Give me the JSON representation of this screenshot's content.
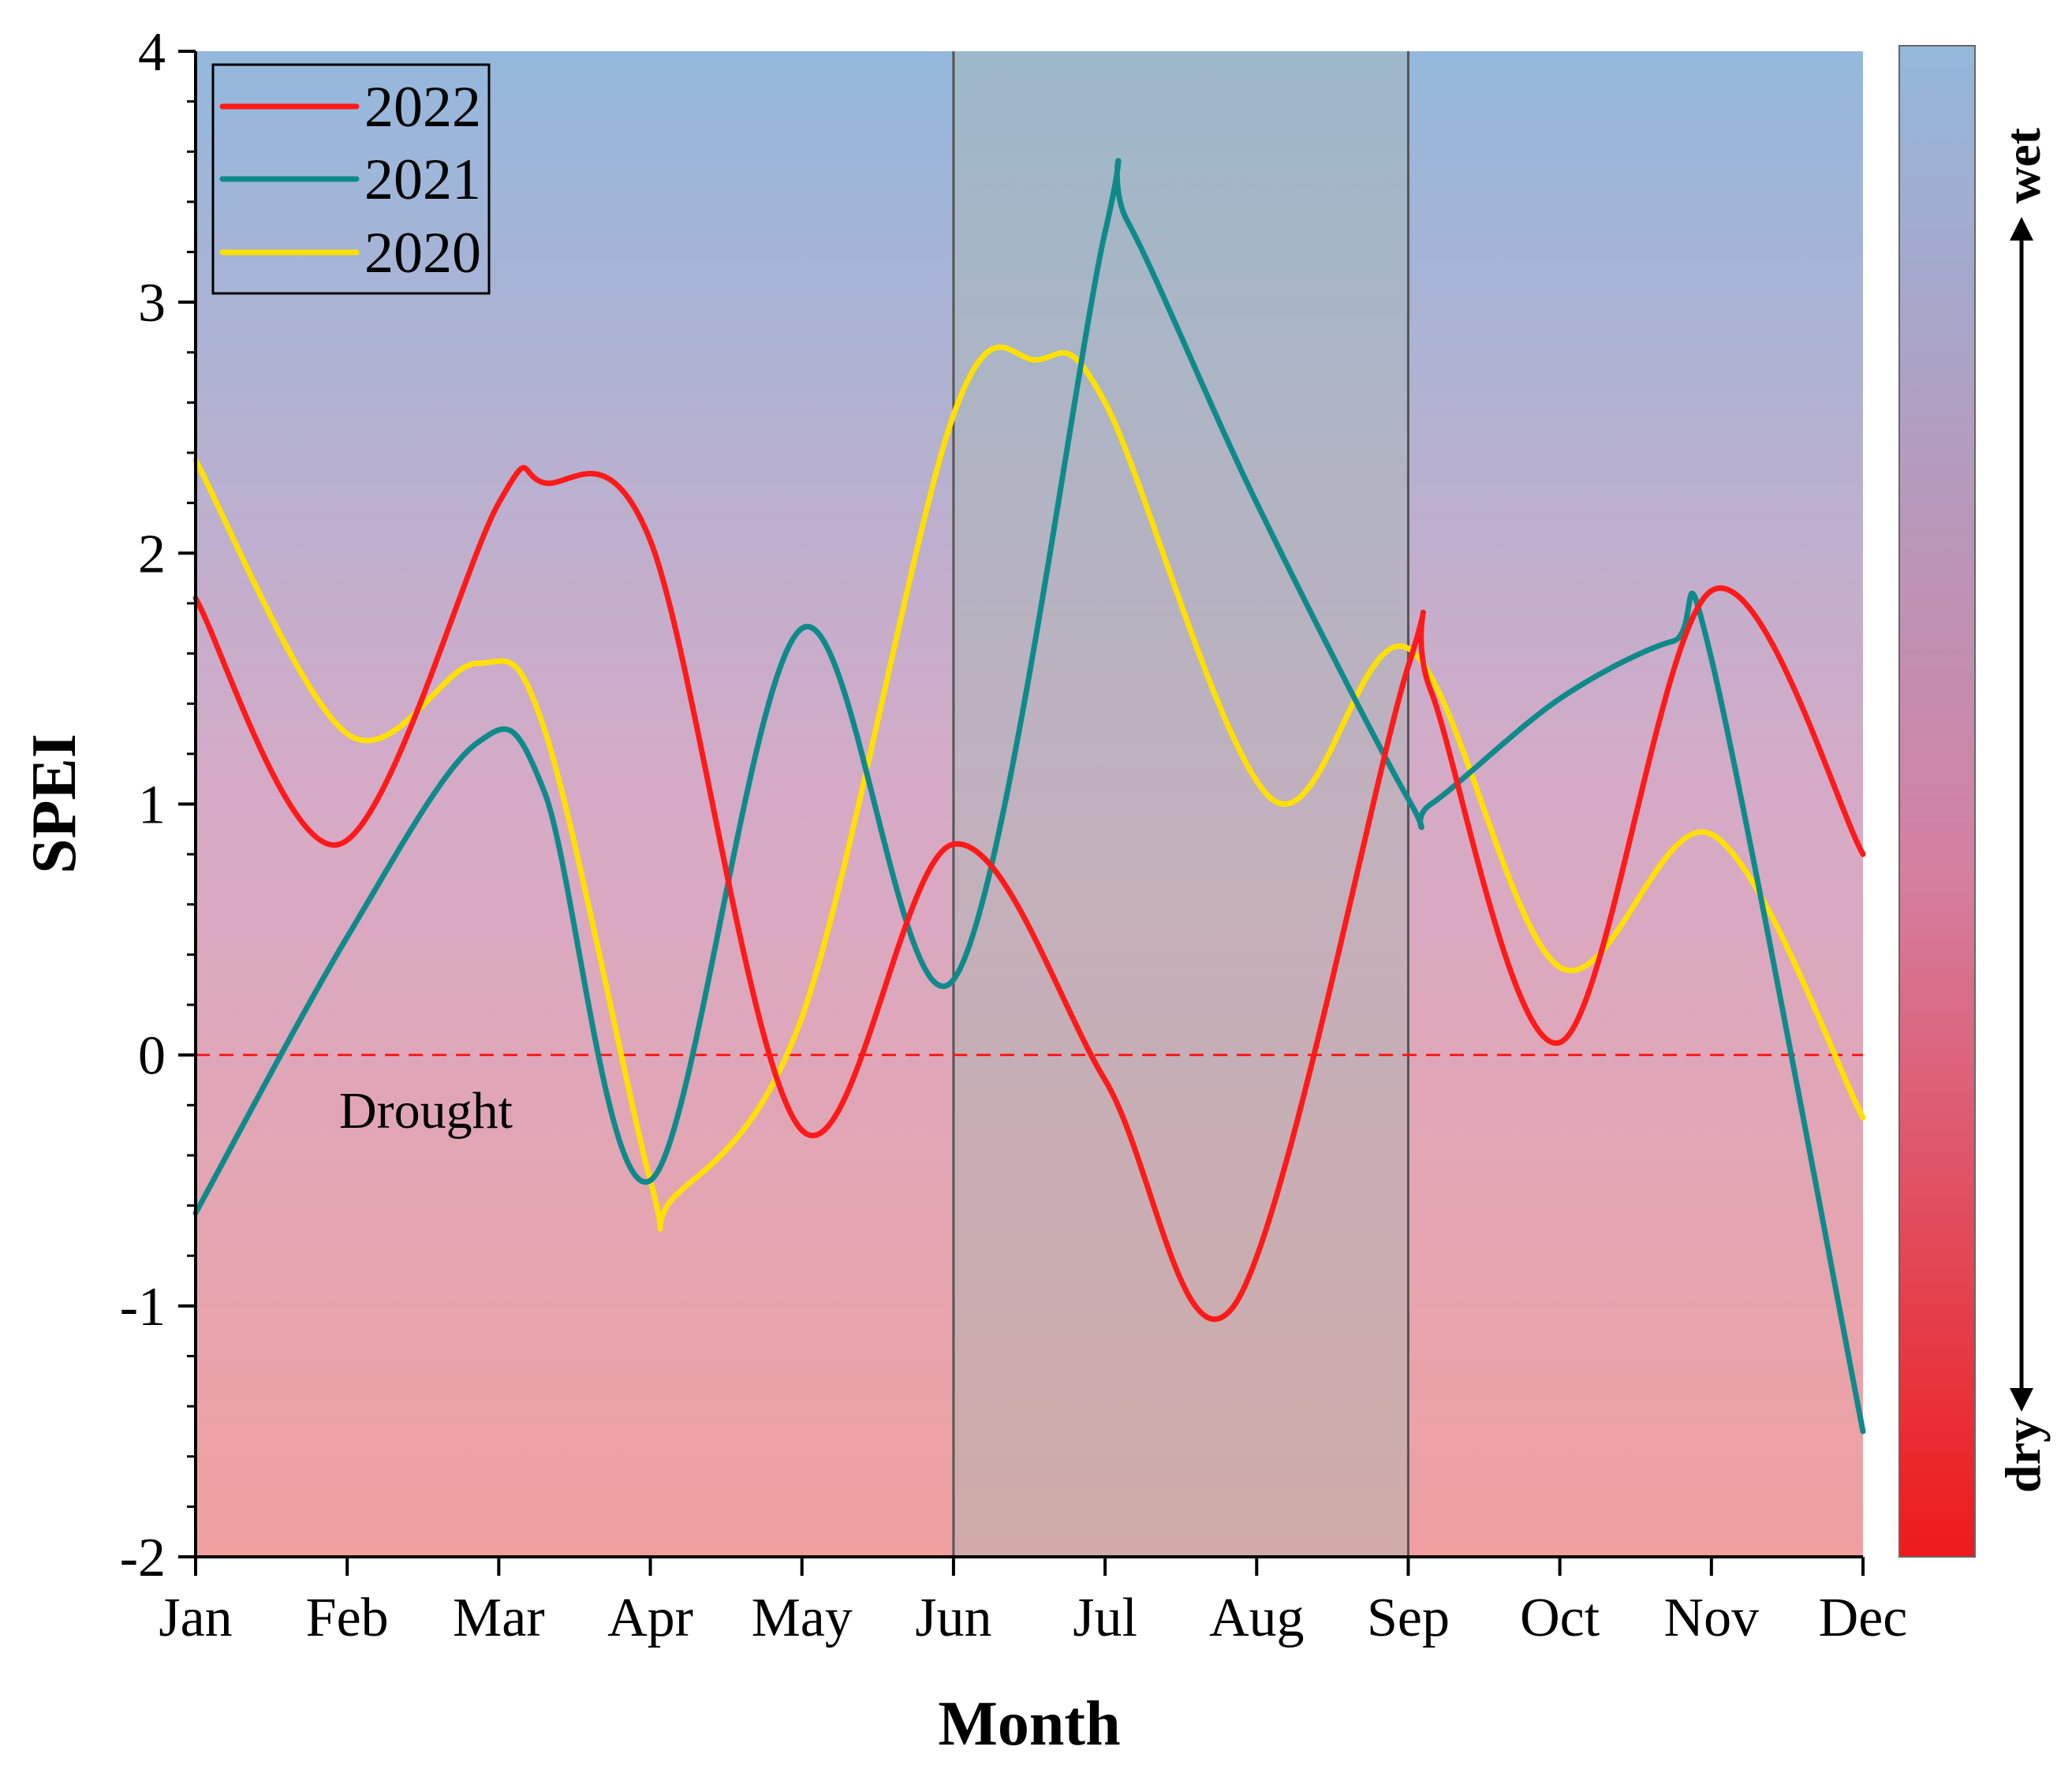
{
  "chart_data": {
    "type": "line",
    "title": "",
    "xlabel": "Month",
    "ylabel": "SPEI",
    "categories": [
      "Jan",
      "Feb",
      "Mar",
      "Apr",
      "May",
      "Jun",
      "Jul",
      "Aug",
      "Sep",
      "Oct",
      "Nov",
      "Dec"
    ],
    "ylim": [
      -2,
      4
    ],
    "yticks": [
      "4",
      "3",
      "2",
      "1",
      "0",
      "-1",
      "-2"
    ],
    "grid": false,
    "legend_position": "top-left",
    "series": [
      {
        "name": "2022",
        "color": "#ff1a1a",
        "points": [
          [
            0,
            1.82
          ],
          [
            0.95,
            0.84
          ],
          [
            2.0,
            2.2
          ],
          [
            2.3,
            2.28
          ],
          [
            3.0,
            2.05
          ],
          [
            4.0,
            -0.3
          ],
          [
            5.0,
            0.84
          ],
          [
            6.0,
            -0.1
          ],
          [
            6.85,
            -1.0
          ],
          [
            8.0,
            1.55
          ],
          [
            8.15,
            1.45
          ],
          [
            9.0,
            0.05
          ],
          [
            10.0,
            1.85
          ],
          [
            11.0,
            0.8
          ]
        ]
      },
      {
        "name": "2021",
        "color": "#0e8a8a",
        "points": [
          [
            0,
            -0.63
          ],
          [
            1.0,
            0.47
          ],
          [
            1.85,
            1.24
          ],
          [
            2.3,
            1.05
          ],
          [
            3.0,
            -0.5
          ],
          [
            4.0,
            1.7
          ],
          [
            5.0,
            0.3
          ],
          [
            6.0,
            3.28
          ],
          [
            6.15,
            3.32
          ],
          [
            7.0,
            2.2
          ],
          [
            8.0,
            1.02
          ],
          [
            8.15,
            1.0
          ],
          [
            9.0,
            1.42
          ],
          [
            9.75,
            1.65
          ],
          [
            10.0,
            1.58
          ],
          [
            11.0,
            -1.5
          ]
        ]
      },
      {
        "name": "2020",
        "color": "#ffe000",
        "points": [
          [
            0,
            2.37
          ],
          [
            1.0,
            1.28
          ],
          [
            1.85,
            1.56
          ],
          [
            2.3,
            1.3
          ],
          [
            3.0,
            -0.5
          ],
          [
            3.15,
            -0.57
          ],
          [
            4.0,
            0.15
          ],
          [
            5.0,
            2.55
          ],
          [
            5.55,
            2.77
          ],
          [
            6.0,
            2.6
          ],
          [
            7.1,
            1.02
          ],
          [
            8.0,
            1.62
          ],
          [
            9.0,
            0.35
          ],
          [
            10.0,
            0.88
          ],
          [
            11.0,
            -0.25
          ]
        ]
      }
    ],
    "reference_line": {
      "value": 0,
      "style": "dashed",
      "color": "#ff1a1a"
    },
    "highlight_range": [
      "Jun",
      "Sep"
    ],
    "annotations": [
      "Drought"
    ],
    "background_gradient": {
      "top": "#93b8dc",
      "middle": "#d6aac6",
      "bottom": "#f0a0a0"
    },
    "colorbar": {
      "top_label": "wet",
      "bottom_label": "dry",
      "top_color": "#93b8dc",
      "mid_color": "#d47fa0",
      "bottom_color": "#ee1a1a"
    }
  }
}
